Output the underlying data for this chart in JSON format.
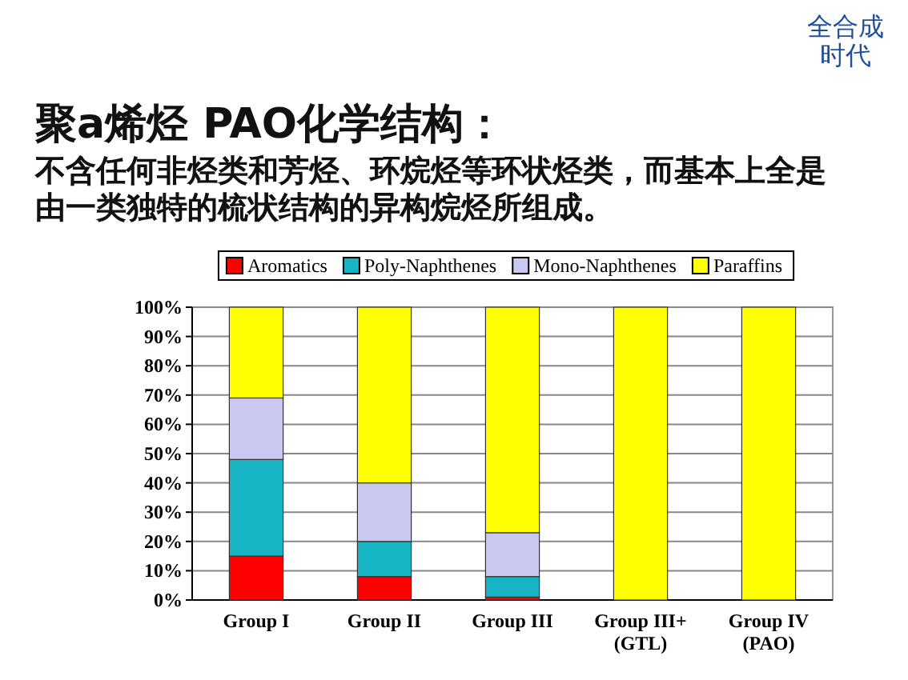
{
  "chart_data": {
    "type": "bar",
    "stacked": true,
    "title": "聚a烯烃 PAO化学结构：",
    "subtitle": "不含任何非烃类和芳烃、环烷烃等环状烃类，而基本上全是由一类独特的梳状结构的异构烷烃所组成。",
    "annotations": [
      "全合成时代"
    ],
    "categories": [
      "Group I",
      "Group II",
      "Group III",
      "Group III+ (GTL)",
      "Group IV (PAO)"
    ],
    "series": [
      {
        "name": "Aromatics",
        "color": "#ff0000",
        "values": [
          15,
          8,
          1,
          0,
          0
        ]
      },
      {
        "name": "Poly-Naphthenes",
        "color": "#17b4c4",
        "values": [
          33,
          12,
          7,
          0,
          0
        ]
      },
      {
        "name": "Mono-Naphthenes",
        "color": "#c8c8f0",
        "values": [
          21,
          20,
          15,
          0,
          0
        ]
      },
      {
        "name": "Paraffins",
        "color": "#ffff00",
        "values": [
          31,
          60,
          77,
          100,
          100
        ]
      }
    ],
    "ylim": [
      0,
      100
    ],
    "yticks": [
      {
        "value": 0,
        "label": "0%"
      },
      {
        "value": 10,
        "label": "10%"
      },
      {
        "value": 20,
        "label": "20%"
      },
      {
        "value": 30,
        "label": "30%"
      },
      {
        "value": 40,
        "label": "40%"
      },
      {
        "value": 50,
        "label": "50%"
      },
      {
        "value": 60,
        "label": "60%"
      },
      {
        "value": 70,
        "label": "70%"
      },
      {
        "value": 80,
        "label": "80%"
      },
      {
        "value": 90,
        "label": "90%"
      },
      {
        "value": 100,
        "label": "100%"
      }
    ],
    "grid": "y",
    "legend": "top"
  }
}
